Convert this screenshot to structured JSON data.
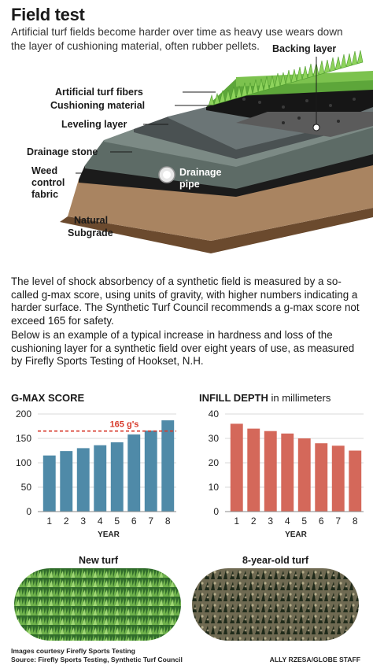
{
  "header": {
    "title": "Field test",
    "subtitle": "Artificial turf fields become harder over time as heavy use wears down the layer of cushioning material, often rubber pellets."
  },
  "diagram": {
    "labels": {
      "backing": "Backing layer",
      "fibers": "Artificial turf fibers",
      "cushion": "Cushioning material",
      "leveling": "Leveling layer",
      "drainage_stone": "Drainage stone",
      "weed_line1": "Weed",
      "weed_line2": "control",
      "weed_line3": "fabric",
      "pipe_line1": "Drainage",
      "pipe_line2": "pipe",
      "subgrade_line1": "Natural",
      "subgrade_line2": "Subgrade"
    }
  },
  "body": {
    "paragraph1": "The level of shock absorbency of a synthetic field is measured by a so-called g-max score, using units of gravity, with higher numbers indicating a harder surface. The Synthetic Turf Council recommends a g-max score not exceed 165 for safety.",
    "paragraph2": "Below is an example of a typical increase in hardness and loss of the cushioning layer for a synthetic field over eight years of use, as measured by Firefly Sports Testing of Hookset, N.H."
  },
  "chart_data": [
    {
      "type": "bar",
      "title": "G-MAX SCORE",
      "xlabel": "YEAR",
      "ylabel": "",
      "categories": [
        "1",
        "2",
        "3",
        "4",
        "5",
        "6",
        "7",
        "8"
      ],
      "values": [
        115,
        124,
        130,
        136,
        142,
        158,
        166,
        187
      ],
      "ylim": [
        0,
        200
      ],
      "yticks": [
        0,
        50,
        100,
        150,
        200
      ],
      "threshold": {
        "value": 165,
        "label": "165 g's"
      },
      "color": "#4f8aa8",
      "threshold_color": "#d73a2b"
    },
    {
      "type": "bar",
      "title": "INFILL DEPTH",
      "title_unit": "in millimeters",
      "xlabel": "YEAR",
      "ylabel": "",
      "categories": [
        "1",
        "2",
        "3",
        "4",
        "5",
        "6",
        "7",
        "8"
      ],
      "values": [
        36,
        34,
        33,
        32,
        30,
        28,
        27,
        25
      ],
      "ylim": [
        0,
        40
      ],
      "yticks": [
        0,
        10,
        20,
        30,
        40
      ],
      "color": "#d4685a"
    }
  ],
  "photos": {
    "new_title": "New turf",
    "old_title": "8-year-old turf"
  },
  "footer": {
    "credit_line1": "Images courtesy Firefly Sports Testing",
    "credit_line2": "Source: Firefly Sports Testing, Synthetic Turf Council",
    "byline": "ALLY RZESA/GLOBE STAFF"
  }
}
